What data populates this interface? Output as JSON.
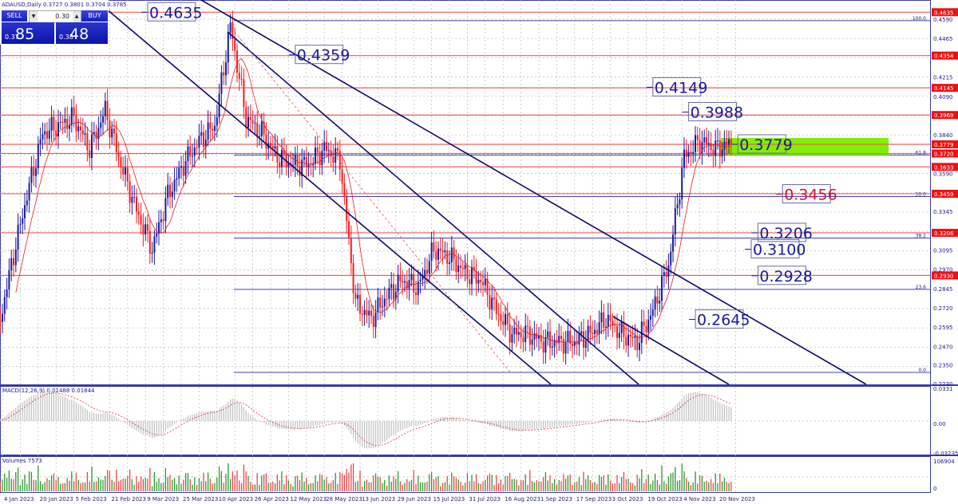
{
  "header": {
    "symbol_line": "ADAUSD,Daily",
    "ohlc": "0.3727 0.3801 0.3704 0.3785"
  },
  "trade_panel": {
    "sell_label": "SELL",
    "buy_label": "BUY",
    "lot": "0.30",
    "sell_small": "0.37",
    "sell_big": "85",
    "buy_small": "0.38",
    "buy_big": "48"
  },
  "colors": {
    "bull": "#1a1aa0",
    "bear": "#ff1a1a",
    "level": "#f06060",
    "trend": "#0a0a6e",
    "fib": "#4040b0",
    "zone": "#80f000",
    "tag": "#ee1111"
  },
  "chart_data": {
    "type": "candlestick",
    "symbol": "ADAUSD",
    "timeframe": "Daily",
    "ylim": [
      0.223,
      0.459
    ],
    "y_ticks": [
      "0.4590",
      "0.4465",
      "0.4215",
      "0.4090",
      "0.3840",
      "0.3590",
      "0.3345",
      "0.3095",
      "0.2970",
      "0.2845",
      "0.2720",
      "0.2595",
      "0.2470",
      "0.2350",
      "0.2230"
    ],
    "x_ticks": [
      "4 Jan 2023",
      "20 Jan 2023",
      "5 Feb 2023",
      "21 Feb 2023",
      "9 Mar 2023",
      "25 Mar 2023",
      "10 Apr 2023",
      "26 Apr 2023",
      "12 May 2023",
      "28 May 2023",
      "13 Jun 2023",
      "29 Jun 2023",
      "15 Jul 2023",
      "31 Jul 2023",
      "16 Aug 2023",
      "1 Sep 2023",
      "17 Sep 2023",
      "3 Oct 2023",
      "19 Oct 2023",
      "4 Nov 2023",
      "20 Nov 2023"
    ],
    "weekly_closes": [
      [
        "2023-01-01",
        0.25
      ],
      [
        "2023-01-08",
        0.3
      ],
      [
        "2023-01-15",
        0.345
      ],
      [
        "2023-01-22",
        0.385
      ],
      [
        "2023-01-29",
        0.39
      ],
      [
        "2023-02-05",
        0.395
      ],
      [
        "2023-02-12",
        0.375
      ],
      [
        "2023-02-19",
        0.4
      ],
      [
        "2023-02-26",
        0.365
      ],
      [
        "2023-03-05",
        0.335
      ],
      [
        "2023-03-12",
        0.31
      ],
      [
        "2023-03-19",
        0.345
      ],
      [
        "2023-03-26",
        0.365
      ],
      [
        "2023-04-02",
        0.38
      ],
      [
        "2023-04-09",
        0.39
      ],
      [
        "2023-04-16",
        0.455
      ],
      [
        "2023-04-23",
        0.395
      ],
      [
        "2023-04-30",
        0.385
      ],
      [
        "2023-05-07",
        0.37
      ],
      [
        "2023-05-14",
        0.365
      ],
      [
        "2023-05-21",
        0.365
      ],
      [
        "2023-05-28",
        0.375
      ],
      [
        "2023-06-04",
        0.368
      ],
      [
        "2023-06-11",
        0.275
      ],
      [
        "2023-06-18",
        0.265
      ],
      [
        "2023-06-25",
        0.28
      ],
      [
        "2023-07-02",
        0.29
      ],
      [
        "2023-07-09",
        0.285
      ],
      [
        "2023-07-16",
        0.31
      ],
      [
        "2023-07-23",
        0.305
      ],
      [
        "2023-07-30",
        0.295
      ],
      [
        "2023-08-06",
        0.29
      ],
      [
        "2023-08-13",
        0.27
      ],
      [
        "2023-08-20",
        0.255
      ],
      [
        "2023-08-27",
        0.255
      ],
      [
        "2023-09-03",
        0.25
      ],
      [
        "2023-09-10",
        0.25
      ],
      [
        "2023-09-17",
        0.25
      ],
      [
        "2023-09-24",
        0.255
      ],
      [
        "2023-10-01",
        0.265
      ],
      [
        "2023-10-08",
        0.255
      ],
      [
        "2023-10-15",
        0.25
      ],
      [
        "2023-10-22",
        0.27
      ],
      [
        "2023-10-29",
        0.3
      ],
      [
        "2023-11-05",
        0.37
      ],
      [
        "2023-11-12",
        0.38
      ],
      [
        "2023-11-19",
        0.375
      ],
      [
        "2023-11-26",
        0.3785
      ]
    ],
    "horizontal_levels": [
      0.4635,
      0.4354,
      0.4145,
      0.3969,
      0.3779,
      0.372,
      0.3633,
      0.3459,
      0.3206,
      0.293
    ],
    "level_tags": [
      "0.4635",
      "0.4354",
      "0.4145",
      "0.3969",
      "0.3779",
      "0.3720",
      "0.3633",
      "0.3459",
      "0.3206",
      "0.2930"
    ],
    "fibonacci": {
      "high": 0.458,
      "low": 0.2302,
      "levels": [
        {
          "label": "100.0",
          "ratio": 1.0
        },
        {
          "label": "61.8",
          "ratio": 0.618
        },
        {
          "label": "50.0",
          "ratio": 0.5
        },
        {
          "label": "38.2",
          "ratio": 0.382
        },
        {
          "label": "23.6",
          "ratio": 0.236
        },
        {
          "label": "0.0",
          "ratio": 0.0
        }
      ]
    },
    "annotations": [
      {
        "text": "0.4635",
        "price": 0.4635,
        "date": "2023-03-10",
        "color": "blue"
      },
      {
        "text": "0.4359",
        "price": 0.4359,
        "date": "2023-05-15",
        "color": "blue"
      },
      {
        "text": "0.4149",
        "price": 0.4149,
        "date": "2023-10-22",
        "color": "blue"
      },
      {
        "text": "0.3988",
        "price": 0.3988,
        "date": "2023-11-07",
        "color": "blue"
      },
      {
        "text": "0.3779",
        "price": 0.3779,
        "date": "2023-11-29",
        "color": "blue"
      },
      {
        "text": "0.3456",
        "price": 0.3456,
        "date": "2023-12-19",
        "color": "red"
      },
      {
        "text": "0.3206",
        "price": 0.3206,
        "date": "2023-12-08",
        "color": "blue"
      },
      {
        "text": "0.3100",
        "price": 0.31,
        "date": "2023-12-05",
        "color": "blue"
      },
      {
        "text": "0.2928",
        "price": 0.2928,
        "date": "2023-12-08",
        "color": "blue"
      },
      {
        "text": "0.2645",
        "price": 0.2645,
        "date": "2023-11-10",
        "color": "blue"
      }
    ],
    "target_zone": {
      "from": 0.371,
      "to": 0.382
    },
    "macd": {
      "label": "MACD(12,26,9) 0.01488 0.01844",
      "ticks": [
        "0.0331",
        "0.00",
        "-0.03235"
      ]
    },
    "volumes": {
      "label": "Volumes 7573",
      "ticks": [
        "106904",
        "0"
      ]
    }
  }
}
